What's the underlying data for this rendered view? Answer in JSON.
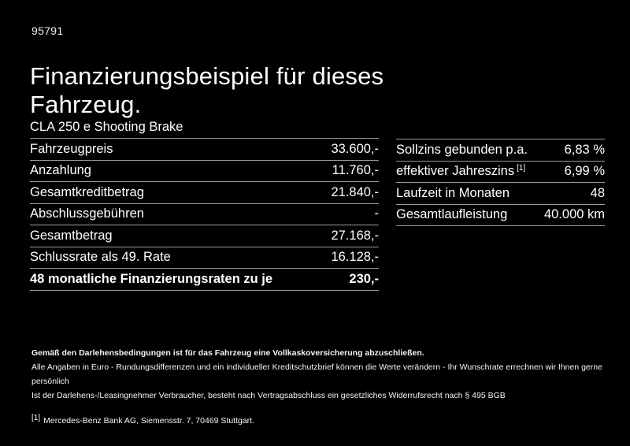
{
  "page": {
    "doc_number": "95791",
    "title": "Finanzierungsbeispiel für dieses\nFahrzeug."
  },
  "vehicle": {
    "model": "CLA 250 e Shooting Brake"
  },
  "financing_table": {
    "rows": [
      {
        "label": "Fahrzeugpreis",
        "value": "33.600,-"
      },
      {
        "label": "Anzahlung",
        "value": "11.760,-"
      },
      {
        "label": "Gesamtkreditbetrag",
        "value": "21.840,-"
      },
      {
        "label": "Abschlussgebühren",
        "value": "-"
      },
      {
        "label": "Gesamtbetrag",
        "value": "27.168,-"
      },
      {
        "label": "Schlussrate als 49. Rate",
        "value": "16.128,-"
      },
      {
        "label": "48 monatliche Finanzierungsraten zu je",
        "value": "230,-"
      }
    ]
  },
  "conditions_table": {
    "rows": [
      {
        "label": "Sollzins gebunden p.a.",
        "value": "6,83 %"
      },
      {
        "label": "effektiver Jahreszins",
        "footnote_marker": "[1]",
        "value": "6,99 %"
      },
      {
        "label": "Laufzeit in Monaten",
        "value": "48"
      },
      {
        "label": "Gesamtlaufleistung",
        "value": "40.000 km"
      }
    ]
  },
  "footer": {
    "line_bold": "Gemäß den Darlehensbedingungen ist für das Fahrzeug eine Vollkaskoversicherung abzuschließen.",
    "line_2": "Alle Angaben in Euro - Rundungsdifferenzen und ein individueller Kreditschutzbrief können die Werte verändern - Ihr Wunschrate errechnen wir Ihnen gerne persönlich",
    "line_3": "Ist der Darlehens-/Leasingnehmer Verbraucher, besteht nach Vertragsabschluss ein gesetzliches Widerrufsrecht nach § 495 BGB",
    "footnote_marker": "[1]",
    "footnote_text": "Mercedes-Benz Bank AG, Siemensstr. 7, 70469 Stuttgart."
  },
  "colors": {
    "background": "#000000",
    "text": "#ffffff",
    "divider": "#9c9c9c"
  }
}
